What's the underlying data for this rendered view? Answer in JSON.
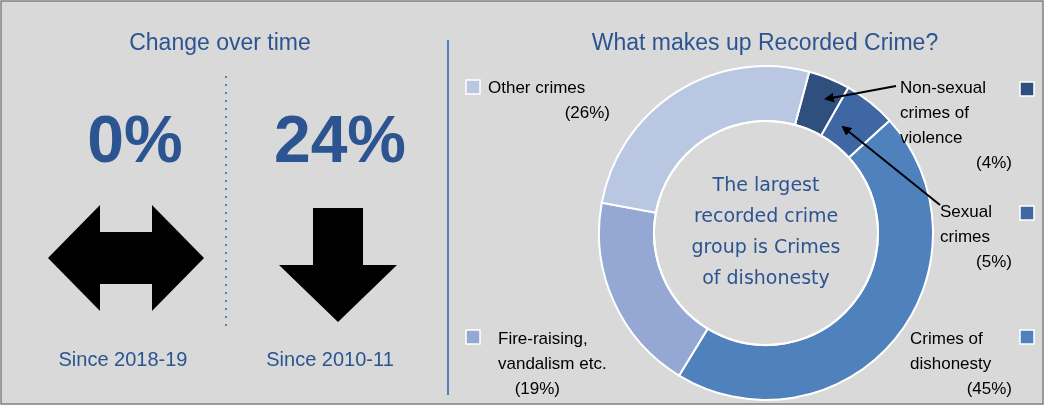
{
  "chart_data": [
    {
      "type": "other",
      "title": "Change over time",
      "annotations": [
        "0%",
        "24%",
        "Since 2018-19",
        "Since 2010-11"
      ]
    },
    {
      "type": "donut",
      "title": "What makes up Recorded Crime?",
      "categories": [
        "Non-sexual crimes of violence",
        "Sexual crimes",
        "Crimes of dishonesty",
        "Fire-raising, vandalism etc.",
        "Other crimes"
      ],
      "values": [
        4,
        5,
        45,
        19,
        26
      ],
      "value_labels": [
        "(4%)",
        "(5%)",
        "(45%)",
        "(19%)",
        "(26%)"
      ],
      "colors": [
        "#2f4f7f",
        "#3f67a3",
        "#4f81bd",
        "#94a8d3",
        "#b9c7e2"
      ],
      "legend": "right",
      "annotations": [
        "The largest recorded crime group is Crimes of dishonesty"
      ]
    }
  ]
}
